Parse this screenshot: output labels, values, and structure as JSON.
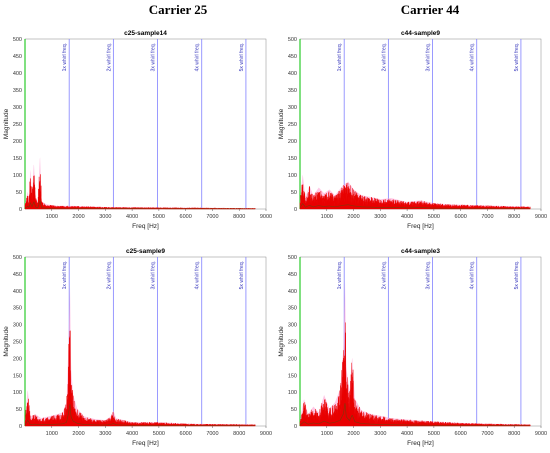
{
  "column_titles": [
    "Carrier 25",
    "Carrier 44"
  ],
  "colors": {
    "fill": "#e80000",
    "fill_light": "#ff9ad2",
    "axis_y": "#00c000",
    "harmonic_line": "#8080ff",
    "harmonic_text": "#3333bb",
    "dark_trace": "#505010"
  },
  "chart_data": [
    {
      "type": "area",
      "title": "c25-sample14",
      "xlabel": "Freq [Hz]",
      "ylabel": "Magnitude",
      "xlim": [
        0,
        9000
      ],
      "ylim": [
        0,
        500
      ],
      "xticks": [
        1000,
        2000,
        3000,
        4000,
        5000,
        6000,
        7000,
        8000,
        9000
      ],
      "yticks": [
        0,
        50,
        100,
        150,
        200,
        250,
        300,
        350,
        400,
        450,
        500
      ],
      "harmonics": [
        {
          "label": "1x whirl freq.",
          "x": 1650
        },
        {
          "label": "2x whirl freq.",
          "x": 3300
        },
        {
          "label": "3x whirl freq.",
          "x": 4950
        },
        {
          "label": "4x whirl freq.",
          "x": 6600
        },
        {
          "label": "5x whirl freq.",
          "x": 8250
        }
      ],
      "series": [
        {
          "values": [
            [
              0,
              12
            ],
            [
              100,
              45
            ],
            [
              150,
              25
            ],
            [
              200,
              105
            ],
            [
              260,
              35
            ],
            [
              330,
              120
            ],
            [
              400,
              30
            ],
            [
              480,
              18
            ],
            [
              560,
              140
            ],
            [
              620,
              20
            ],
            [
              800,
              12
            ],
            [
              1200,
              8
            ],
            [
              1800,
              8
            ],
            [
              3000,
              5
            ],
            [
              5000,
              4
            ],
            [
              7000,
              3
            ],
            [
              8600,
              2
            ]
          ]
        }
      ]
    },
    {
      "type": "area",
      "title": "c44-sample9",
      "xlabel": "Freq [Hz]",
      "ylabel": "Magnitude",
      "xlim": [
        0,
        9000
      ],
      "ylim": [
        0,
        500
      ],
      "xticks": [
        1000,
        2000,
        3000,
        4000,
        5000,
        6000,
        7000,
        8000,
        9000
      ],
      "yticks": [
        0,
        50,
        100,
        150,
        200,
        250,
        300,
        350,
        400,
        450,
        500
      ],
      "harmonics": [
        {
          "label": "1x whirl freq.",
          "x": 1650
        },
        {
          "label": "2x whirl freq.",
          "x": 3300
        },
        {
          "label": "3x whirl freq.",
          "x": 4950
        },
        {
          "label": "4x whirl freq.",
          "x": 6600
        },
        {
          "label": "5x whirl freq.",
          "x": 8250
        }
      ],
      "series": [
        {
          "values": [
            [
              0,
              20
            ],
            [
              100,
              90
            ],
            [
              200,
              30
            ],
            [
              350,
              60
            ],
            [
              500,
              35
            ],
            [
              700,
              55
            ],
            [
              900,
              40
            ],
            [
              1100,
              50
            ],
            [
              1300,
              35
            ],
            [
              1600,
              60
            ],
            [
              1800,
              70
            ],
            [
              2000,
              50
            ],
            [
              2300,
              35
            ],
            [
              2700,
              30
            ],
            [
              3000,
              25
            ],
            [
              3400,
              28
            ],
            [
              4000,
              18
            ],
            [
              4500,
              22
            ],
            [
              5000,
              15
            ],
            [
              5600,
              12
            ],
            [
              6500,
              10
            ],
            [
              7500,
              8
            ],
            [
              8600,
              6
            ]
          ]
        }
      ]
    },
    {
      "type": "area",
      "title": "c25-sample9",
      "xlabel": "Freq [Hz]",
      "ylabel": "Magnitude",
      "xlim": [
        0,
        9000
      ],
      "ylim": [
        0,
        500
      ],
      "xticks": [
        1000,
        2000,
        3000,
        4000,
        5000,
        6000,
        7000,
        8000,
        9000
      ],
      "yticks": [
        0,
        50,
        100,
        150,
        200,
        250,
        300,
        350,
        400,
        450,
        500
      ],
      "harmonics": [
        {
          "label": "1x whirl freq.",
          "x": 1650
        },
        {
          "label": "2x whirl freq.",
          "x": 3300
        },
        {
          "label": "3x whirl freq.",
          "x": 4950
        },
        {
          "label": "4x whirl freq.",
          "x": 6600
        },
        {
          "label": "5x whirl freq.",
          "x": 8250
        }
      ],
      "series": [
        {
          "values": [
            [
              0,
              15
            ],
            [
              100,
              95
            ],
            [
              200,
              25
            ],
            [
              400,
              30
            ],
            [
              600,
              20
            ],
            [
              900,
              25
            ],
            [
              1200,
              30
            ],
            [
              1400,
              35
            ],
            [
              1550,
              60
            ],
            [
              1620,
              200
            ],
            [
              1680,
              360
            ],
            [
              1720,
              150
            ],
            [
              1800,
              80
            ],
            [
              1950,
              45
            ],
            [
              2200,
              25
            ],
            [
              2600,
              18
            ],
            [
              3000,
              15
            ],
            [
              3200,
              25
            ],
            [
              3300,
              40
            ],
            [
              3400,
              20
            ],
            [
              4000,
              10
            ],
            [
              5000,
              10
            ],
            [
              6000,
              6
            ],
            [
              7000,
              5
            ],
            [
              8600,
              4
            ]
          ]
        }
      ]
    },
    {
      "type": "area",
      "title": "c44-sample3",
      "xlabel": "Freq [Hz]",
      "ylabel": "Magnitude",
      "xlim": [
        0,
        9000
      ],
      "ylim": [
        0,
        500
      ],
      "xticks": [
        1000,
        2000,
        3000,
        4000,
        5000,
        6000,
        7000,
        8000,
        9000
      ],
      "yticks": [
        0,
        50,
        100,
        150,
        200,
        250,
        300,
        350,
        400,
        450,
        500
      ],
      "harmonics": [
        {
          "label": "1x whirl freq.",
          "x": 1650
        },
        {
          "label": "2x whirl freq.",
          "x": 3300
        },
        {
          "label": "3x whirl freq.",
          "x": 4950
        },
        {
          "label": "4x whirl freq.",
          "x": 6600
        },
        {
          "label": "5x whirl freq.",
          "x": 8250
        }
      ],
      "series": [
        {
          "values": [
            [
              0,
              15
            ],
            [
              150,
              70
            ],
            [
              300,
              30
            ],
            [
              500,
              50
            ],
            [
              700,
              35
            ],
            [
              900,
              80
            ],
            [
              1100,
              45
            ],
            [
              1300,
              60
            ],
            [
              1500,
              95
            ],
            [
              1620,
              200
            ],
            [
              1680,
              375
            ],
            [
              1730,
              150
            ],
            [
              1850,
              90
            ],
            [
              1950,
              180
            ],
            [
              2050,
              70
            ],
            [
              2300,
              40
            ],
            [
              2700,
              30
            ],
            [
              3100,
              25
            ],
            [
              3400,
              20
            ],
            [
              3800,
              18
            ],
            [
              4300,
              15
            ],
            [
              5000,
              12
            ],
            [
              6000,
              8
            ],
            [
              7000,
              6
            ],
            [
              8600,
              4
            ]
          ]
        }
      ]
    }
  ]
}
